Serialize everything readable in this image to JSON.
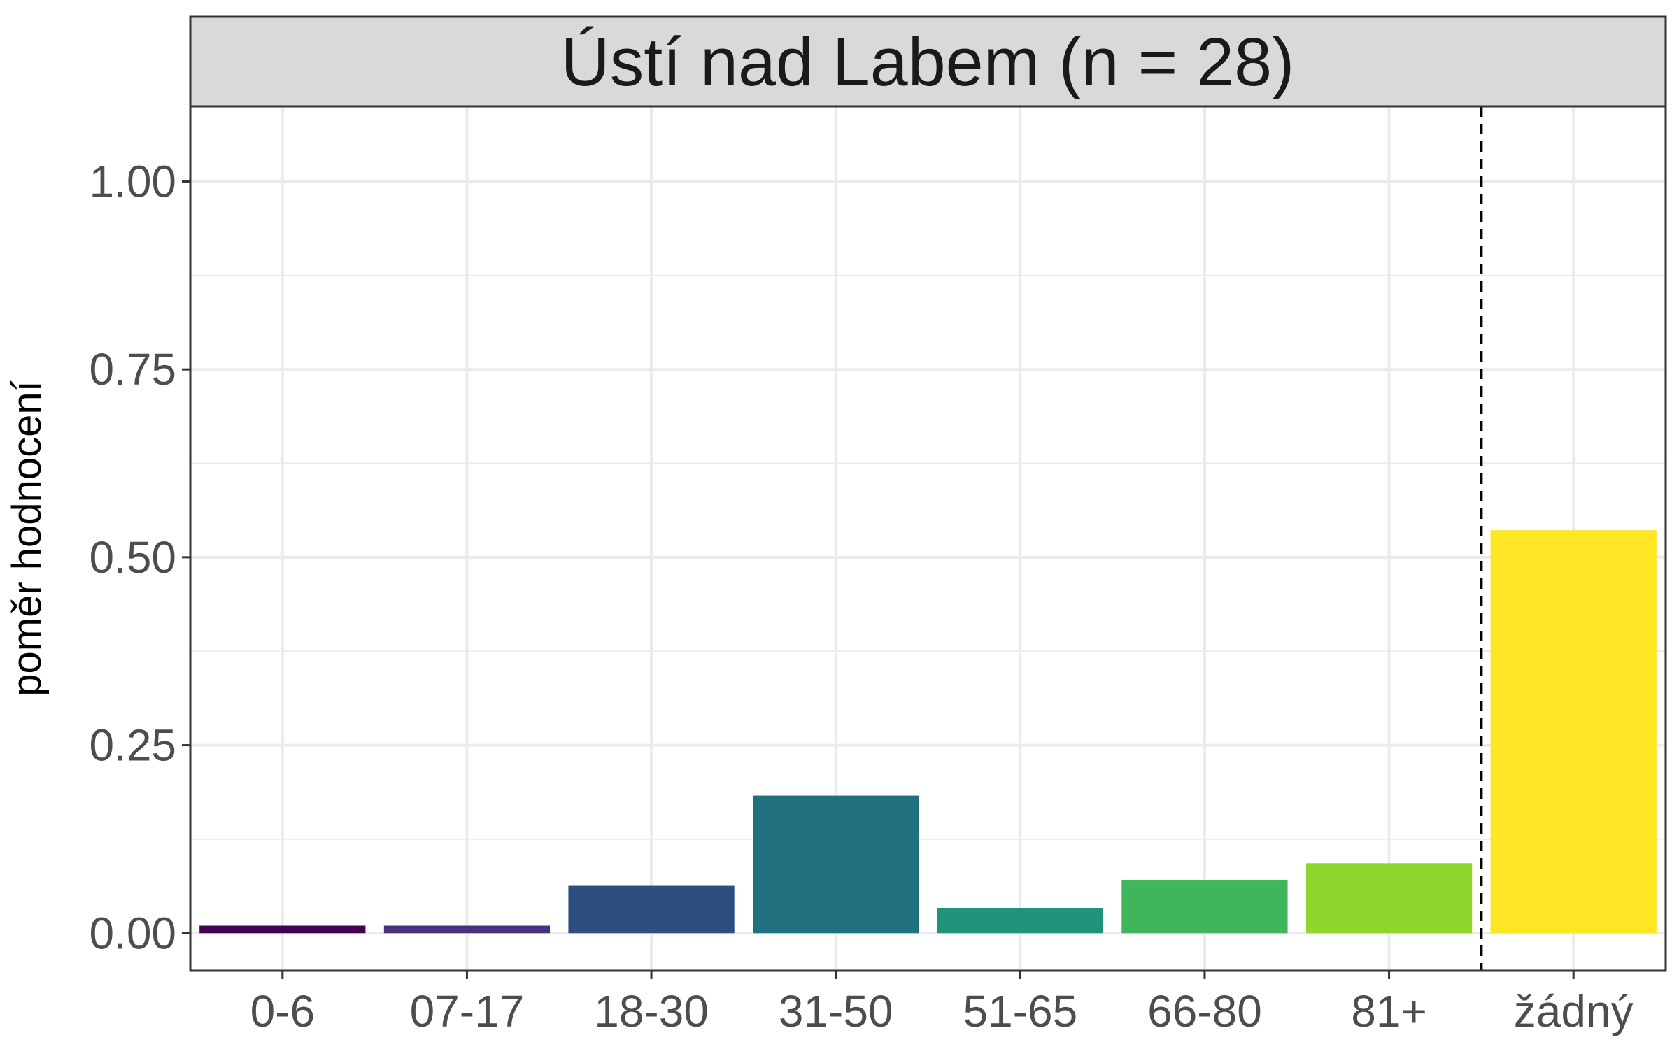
{
  "chart_data": {
    "type": "bar",
    "facet_title": "Ústí nad Labem (n = 28)",
    "ylabel": "poměr hodnocení",
    "xlabel": "",
    "categories": [
      "0-6",
      "07-17",
      "18-30",
      "31-50",
      "51-65",
      "66-80",
      "81+",
      "žádný"
    ],
    "values": [
      0.01,
      0.01,
      0.063,
      0.183,
      0.033,
      0.07,
      0.093,
      0.536
    ],
    "colors": [
      "#440154",
      "#46327E",
      "#2C4F7F",
      "#21707F",
      "#20947A",
      "#40B65A",
      "#8FD62E",
      "#FDE725"
    ],
    "ylim": [
      -0.05,
      1.1
    ],
    "yticks": [
      0.0,
      0.25,
      0.5,
      0.75,
      1.0
    ],
    "ytick_labels": [
      "0.00",
      "0.25",
      "0.50",
      "0.75",
      "1.00"
    ],
    "reference_line": {
      "style": "dashed",
      "between": [
        "81+",
        "žádný"
      ]
    },
    "grid": true,
    "legend": "none"
  }
}
